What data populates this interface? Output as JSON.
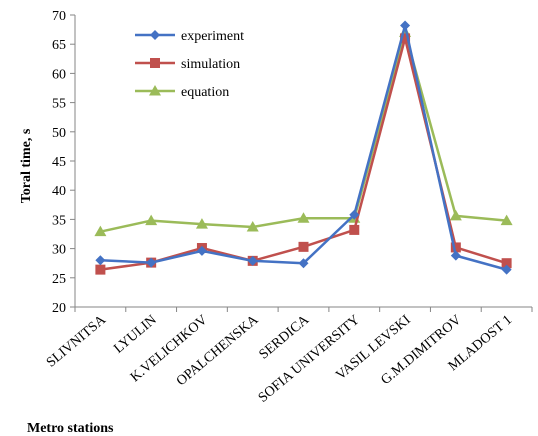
{
  "chart_data": {
    "type": "line",
    "xlabel": "Metro stations",
    "ylabel": "Toral time, s",
    "ylim": [
      20,
      70
    ],
    "yticks": [
      20,
      25,
      30,
      35,
      40,
      45,
      50,
      55,
      60,
      65,
      70
    ],
    "grid": false,
    "legend": "top-left",
    "categories": [
      "SLIVNITSA",
      "LYULIN",
      "K.VELICHKOV",
      "OPALCHENSKA",
      "SERDICA",
      "SOFIA UNIVERSITY",
      "VASIL LEVSKI",
      "G.M.DIMITROV",
      "MLADOST 1"
    ],
    "series": [
      {
        "name": "experiment",
        "color": "#4472C4",
        "marker": "diamond",
        "values": [
          28.0,
          27.6,
          29.6,
          27.9,
          27.5,
          35.8,
          68.2,
          28.8,
          26.4
        ]
      },
      {
        "name": "simulation",
        "color": "#C0504D",
        "marker": "square",
        "values": [
          26.4,
          27.6,
          30.1,
          27.9,
          30.3,
          33.2,
          66.0,
          30.2,
          27.5
        ]
      },
      {
        "name": "equation",
        "color": "#9BBB59",
        "marker": "triangle",
        "values": [
          32.9,
          34.8,
          34.2,
          33.7,
          35.2,
          35.2,
          67.0,
          35.6,
          34.8
        ]
      }
    ]
  }
}
